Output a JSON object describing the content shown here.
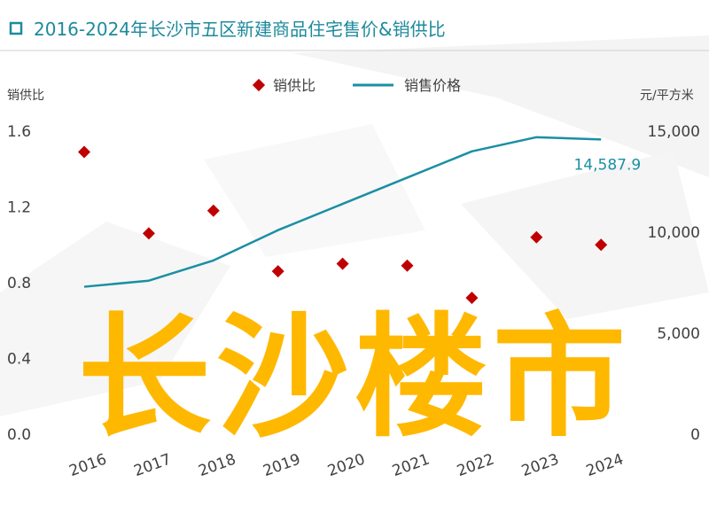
{
  "header": {
    "title": "2016-2024年长沙市五区新建商品住宅售价&销供比"
  },
  "watermark": {
    "text": "长沙楼市",
    "color": "#FFB800"
  },
  "colors": {
    "accent": "#1E8A9C",
    "ratio": "#C00000",
    "price": "#1A8FA3",
    "axis_text": "#404040"
  },
  "chart_data": {
    "type": "line",
    "categories": [
      "2016",
      "2017",
      "2018",
      "2019",
      "2020",
      "2021",
      "2022",
      "2023",
      "2024"
    ],
    "legend_position": "top",
    "series": [
      {
        "name": "销供比",
        "axis": "left",
        "marker": "diamond",
        "values": [
          1.49,
          1.06,
          1.18,
          0.86,
          0.9,
          0.89,
          0.72,
          1.04,
          1.0
        ]
      },
      {
        "name": "销售价格",
        "axis": "right",
        "marker": "line",
        "values": [
          7300,
          7600,
          8600,
          10100,
          11400,
          12700,
          14000,
          14700,
          14587.9
        ]
      }
    ],
    "annotations": [
      {
        "series": 1,
        "index": 8,
        "text": "14,587.9"
      }
    ],
    "y_left": {
      "label": "销供比",
      "range": [
        0,
        1.6
      ],
      "ticks": [
        0,
        0.4,
        0.8,
        1.2,
        1.6
      ],
      "tick_labels": [
        "0.0",
        "0.4",
        "0.8",
        "1.2",
        "1.6"
      ]
    },
    "y_right": {
      "label": "元/平方米",
      "range": [
        0,
        15000
      ],
      "ticks": [
        0,
        5000,
        10000,
        15000
      ],
      "tick_labels": [
        "0",
        "5,000",
        "10,000",
        "15,000"
      ]
    },
    "grid": false
  }
}
